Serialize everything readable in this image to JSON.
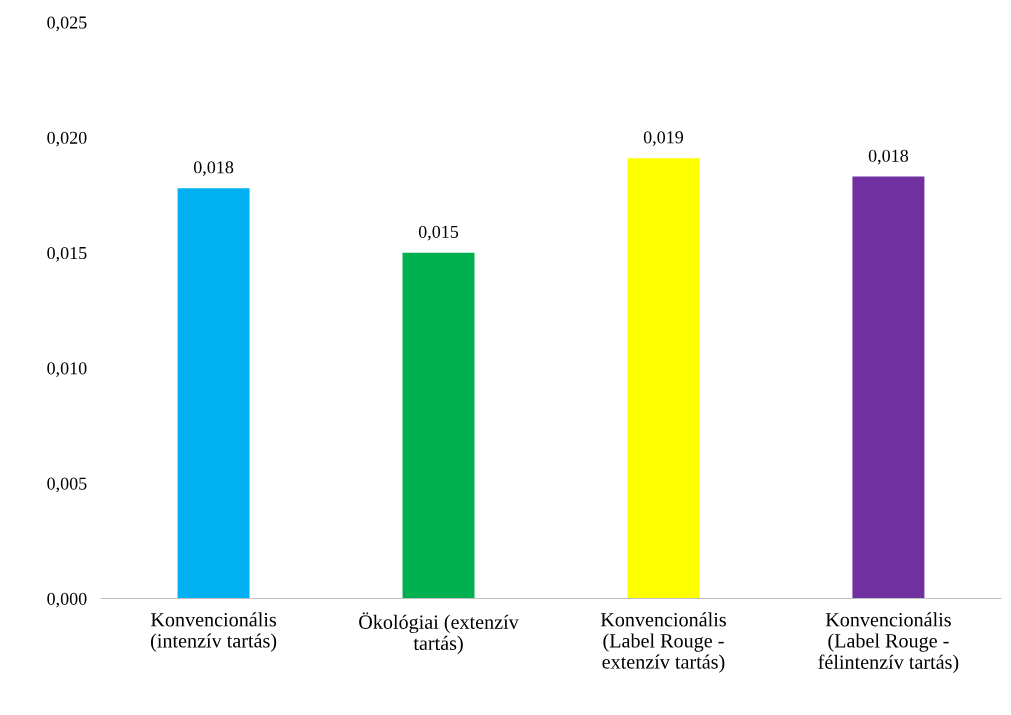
{
  "chart_data": {
    "type": "bar",
    "categories": [
      "Konvencionális\n(intenzív tartás)",
      "Ökológiai (extenzív\ntartás)",
      "Konvencionális\n(Label Rouge -\nextenzív tartás)",
      "Konvencionális\n(Label Rouge -\nfélintenzív tartás)"
    ],
    "values": [
      0.0178,
      0.015,
      0.0191,
      0.0183
    ],
    "colors": [
      "#00b0f0",
      "#00b050",
      "#ffff00",
      "#7030a0"
    ],
    "value_labels": [
      "0,018",
      "0,015",
      "0,019",
      "0,018"
    ],
    "ylim": [
      0,
      0.025
    ],
    "yticks": [
      {
        "value": 0,
        "label": "0,000"
      },
      {
        "value": 0.005,
        "label": "0,005"
      },
      {
        "value": 0.01,
        "label": "0,010"
      },
      {
        "value": 0.015,
        "label": "0,015"
      },
      {
        "value": 0.02,
        "label": "0,020"
      },
      {
        "value": 0.025,
        "label": "0,025"
      }
    ],
    "grid": false,
    "legend": false
  }
}
